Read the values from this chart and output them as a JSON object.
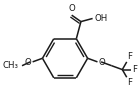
{
  "bg_color": "#ffffff",
  "line_color": "#1a1a1a",
  "line_width": 1.1,
  "text_color": "#1a1a1a",
  "font_size": 6.2
}
